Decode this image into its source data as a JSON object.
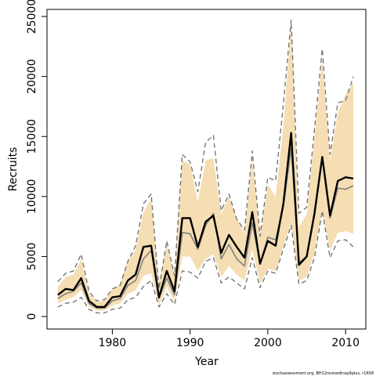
{
  "chart_data": {
    "type": "line",
    "x_label": "Year",
    "y_label": "Recruits",
    "footnote": "stockassessment.org, BH12revisedtrap9plus, r1658",
    "x": [
      1973,
      1974,
      1975,
      1976,
      1977,
      1978,
      1979,
      1980,
      1981,
      1982,
      1983,
      1984,
      1985,
      1986,
      1987,
      1988,
      1989,
      1990,
      1991,
      1992,
      1993,
      1994,
      1995,
      1996,
      1997,
      1998,
      1999,
      2000,
      2001,
      2002,
      2003,
      2004,
      2005,
      2006,
      2007,
      2008,
      2009,
      2010,
      2011
    ],
    "band": {
      "color": "#f5deb3",
      "upper": [
        2500,
        3300,
        3500,
        4800,
        2000,
        1200,
        1300,
        2300,
        2700,
        4600,
        5600,
        8700,
        9800,
        2800,
        6000,
        3500,
        13000,
        12700,
        9600,
        13000,
        13200,
        8500,
        10000,
        8200,
        6900,
        13200,
        6600,
        11000,
        10000,
        15800,
        24500,
        7500,
        8500,
        15000,
        21500,
        13000,
        17000,
        18500,
        19500
      ],
      "lower": [
        1100,
        1400,
        1600,
        2200,
        800,
        500,
        500,
        900,
        1100,
        1900,
        2200,
        3400,
        3600,
        900,
        2500,
        1300,
        5000,
        5000,
        3800,
        4800,
        5200,
        3300,
        4200,
        3500,
        3000,
        5600,
        2700,
        4000,
        3800,
        5800,
        7800,
        3000,
        3300,
        5300,
        8800,
        5500,
        7000,
        7100,
        6900
      ]
    },
    "series": [
      {
        "color": "#6e6e6e",
        "dashed": true,
        "width": 1.3,
        "values": [
          2900,
          3600,
          3800,
          5200,
          2100,
          1300,
          1400,
          2300,
          2600,
          4600,
          5900,
          9400,
          10200,
          2300,
          6300,
          3400,
          13500,
          12900,
          10400,
          14500,
          15100,
          8800,
          10200,
          8100,
          7200,
          13800,
          6700,
          11600,
          11300,
          17700,
          24700,
          8600,
          9100,
          15600,
          22300,
          13500,
          17800,
          18000,
          20000
        ]
      },
      {
        "color": "#6e6e6e",
        "dashed": true,
        "width": 1.3,
        "values": [
          800,
          1100,
          1200,
          1600,
          600,
          300,
          300,
          600,
          700,
          1400,
          1600,
          2500,
          3000,
          800,
          1900,
          1000,
          3800,
          3700,
          3200,
          4600,
          4900,
          2800,
          3300,
          2800,
          2300,
          4900,
          2400,
          3800,
          3600,
          5600,
          7600,
          2700,
          3000,
          4900,
          8800,
          4900,
          6300,
          6400,
          5800
        ]
      },
      {
        "color": "#808080",
        "dashed": false,
        "width": 1.6,
        "values": [
          1500,
          1900,
          2100,
          2800,
          1100,
          700,
          700,
          1300,
          1500,
          2600,
          3000,
          4800,
          5500,
          1500,
          3200,
          1800,
          7000,
          6900,
          5600,
          7600,
          8600,
          4800,
          6000,
          4800,
          4200,
          7800,
          4400,
          6600,
          6400,
          9200,
          14000,
          4500,
          5000,
          8400,
          13300,
          8200,
          10700,
          10600,
          10900
        ]
      },
      {
        "color": "#000000",
        "dashed": false,
        "width": 2.4,
        "values": [
          1800,
          2300,
          2200,
          3200,
          1300,
          800,
          800,
          1600,
          1700,
          3000,
          3500,
          5800,
          5900,
          1600,
          3800,
          2100,
          8200,
          8200,
          5800,
          7900,
          8400,
          5300,
          6800,
          5800,
          4900,
          8700,
          4400,
          6300,
          5900,
          9400,
          15300,
          4300,
          5000,
          8600,
          13300,
          8400,
          11300,
          11600,
          11500
        ]
      }
    ],
    "xlim": [
      1971.6,
      2012.6
    ],
    "ylim": [
      -1040,
      25590
    ],
    "xticks": [
      1980,
      1990,
      2000,
      2010
    ],
    "yticks": [
      0,
      5000,
      10000,
      15000,
      20000,
      25000
    ]
  }
}
